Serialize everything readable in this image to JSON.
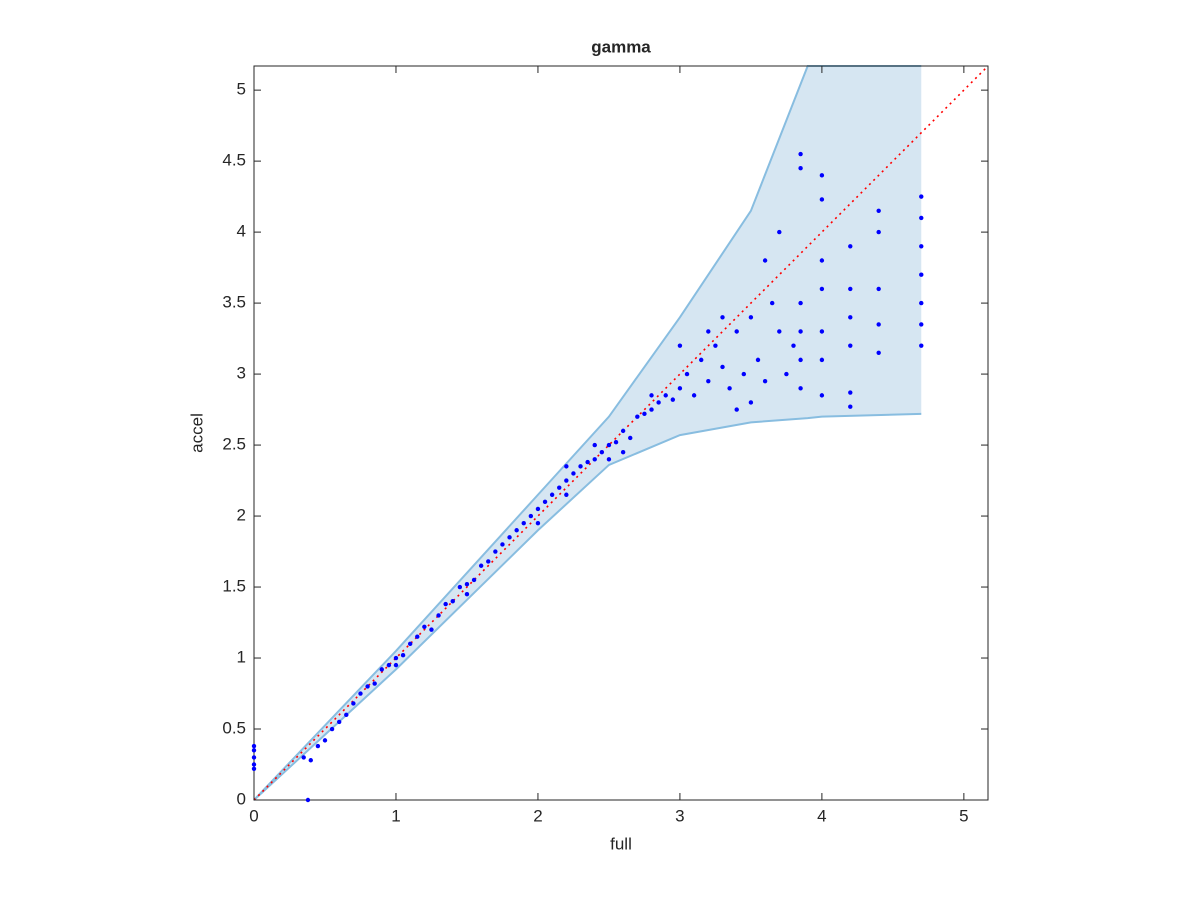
{
  "chart_data": {
    "type": "scatter",
    "title": "gamma",
    "x_label": "full",
    "y_label": "accel",
    "xlim": [
      0,
      5.17
    ],
    "ylim": [
      0,
      5.17
    ],
    "xticks": [
      0,
      1,
      2,
      3,
      4,
      5
    ],
    "yticks": [
      0,
      0.5,
      1,
      1.5,
      2,
      2.5,
      3,
      3.5,
      4,
      4.5,
      5
    ],
    "color": "#0000ff",
    "x": [
      0,
      0,
      0,
      0,
      0,
      0.38,
      0.35,
      0.4,
      0.45,
      0.5,
      0.55,
      0.6,
      0.65,
      0.7,
      0.75,
      0.8,
      0.85,
      0.9,
      0.95,
      1.0,
      1.05,
      1.1,
      1.15,
      1.2,
      1.25,
      1.3,
      1.35,
      1.4,
      1.45,
      1.5,
      1.55,
      1.6,
      1.65,
      1.7,
      1.75,
      1.8,
      1.85,
      1.9,
      1.95,
      2.0,
      2.05,
      2.1,
      2.15,
      2.2,
      2.25,
      2.3,
      2.35,
      2.4,
      2.45,
      2.5,
      2.55,
      2.6,
      2.65,
      2.7,
      2.75,
      2.8,
      2.85,
      2.9,
      2.95,
      3.0,
      3.05,
      3.1,
      3.15,
      3.2,
      3.25,
      3.3,
      3.35,
      3.4,
      3.45,
      3.5,
      3.55,
      3.6,
      3.65,
      3.7,
      3.75,
      3.8,
      1.0,
      1.5,
      2.0,
      2.2,
      2.5,
      2.6,
      2.8,
      3.0,
      3.2,
      3.4,
      3.5,
      3.6,
      3.7,
      3.3,
      2.4,
      2.2,
      3.85,
      3.85,
      3.85,
      3.85,
      3.85,
      3.85,
      4.0,
      4.0,
      4.0,
      4.0,
      4.0,
      4.0,
      4.0,
      4.2,
      4.2,
      4.2,
      4.2,
      4.2,
      4.2,
      4.4,
      4.4,
      4.4,
      4.4,
      4.4,
      4.7,
      4.7,
      4.7,
      4.7,
      4.7,
      4.7,
      4.7
    ],
    "values": [
      0.25,
      0.3,
      0.35,
      0.38,
      0.22,
      0,
      0.3,
      0.28,
      0.38,
      0.42,
      0.5,
      0.55,
      0.6,
      0.68,
      0.75,
      0.8,
      0.82,
      0.92,
      0.95,
      1.0,
      1.02,
      1.1,
      1.15,
      1.22,
      1.2,
      1.3,
      1.38,
      1.4,
      1.5,
      1.52,
      1.55,
      1.65,
      1.68,
      1.75,
      1.8,
      1.85,
      1.9,
      1.95,
      2.0,
      2.05,
      2.1,
      2.15,
      2.2,
      2.25,
      2.3,
      2.35,
      2.38,
      2.4,
      2.45,
      2.5,
      2.52,
      2.6,
      2.55,
      2.7,
      2.72,
      2.75,
      2.8,
      2.85,
      2.82,
      2.9,
      3.0,
      2.85,
      3.1,
      2.95,
      3.2,
      3.05,
      2.9,
      3.3,
      3.0,
      3.4,
      3.1,
      2.95,
      3.5,
      3.3,
      3.0,
      3.2,
      0.95,
      1.45,
      1.95,
      2.15,
      2.4,
      2.45,
      2.85,
      3.2,
      3.3,
      2.75,
      2.8,
      3.8,
      4.0,
      3.4,
      2.5,
      2.35,
      4.55,
      4.45,
      3.5,
      3.3,
      3.1,
      2.9,
      4.4,
      4.23,
      3.8,
      3.6,
      3.3,
      3.1,
      2.85,
      3.9,
      3.6,
      3.4,
      3.2,
      2.87,
      2.77,
      4.15,
      4.0,
      3.6,
      3.35,
      3.15,
      4.25,
      4.1,
      3.9,
      3.7,
      3.5,
      3.35,
      3.2
    ],
    "band": {
      "color": "#d6e6f2",
      "edge_color": "#88bde0",
      "x": [
        0,
        1,
        2,
        2.5,
        3,
        3.5,
        3.9,
        4,
        4.7
      ],
      "upper": [
        0,
        1.05,
        2.15,
        2.7,
        3.4,
        4.15,
        5.17,
        5.17,
        5.17
      ],
      "lower": [
        0,
        0.92,
        1.9,
        2.36,
        2.57,
        2.66,
        2.69,
        2.7,
        2.72
      ]
    },
    "reference_line": {
      "x": [
        0,
        5.17
      ],
      "y": [
        0,
        5.17
      ],
      "color": "#ff0000"
    }
  }
}
